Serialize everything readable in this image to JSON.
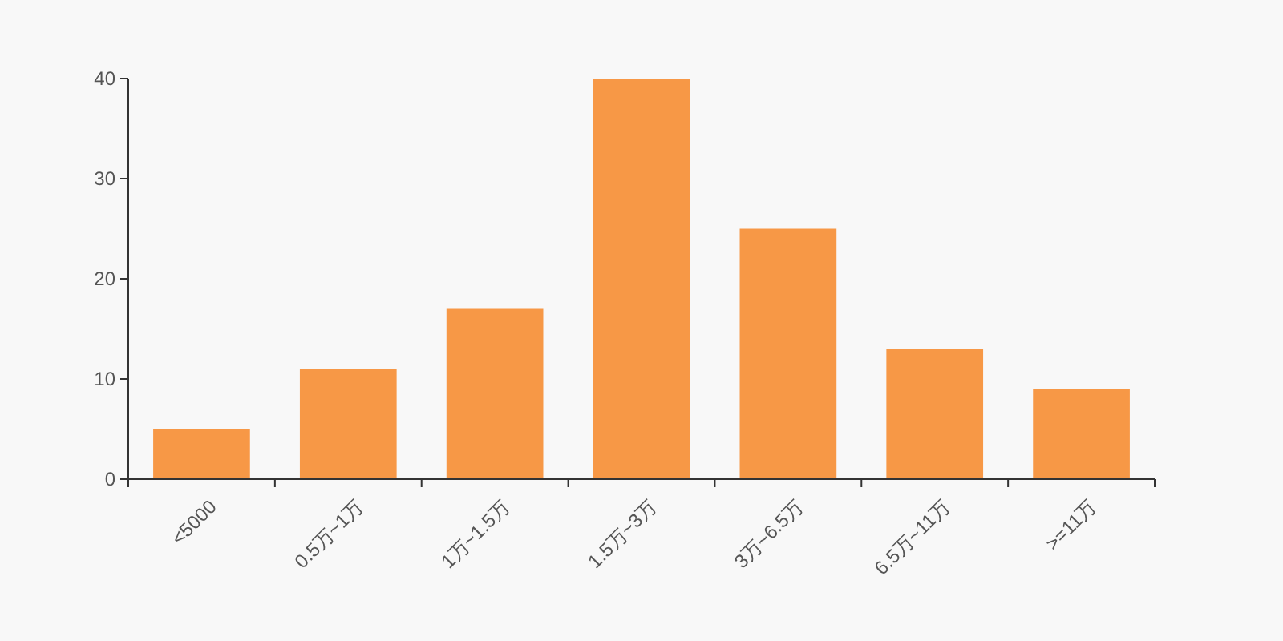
{
  "chart_data": {
    "type": "bar",
    "categories": [
      "<5000",
      "0.5万~1万",
      "1万~1.5万",
      "1.5万~3万",
      "3万~6.5万",
      "6.5万~11万",
      ">=11万"
    ],
    "values": [
      5,
      11,
      17,
      40,
      25,
      13,
      9
    ],
    "color": "#f79846",
    "ylim": [
      0,
      40
    ],
    "yticks": [
      0,
      10,
      20,
      30,
      40
    ],
    "grid": false
  }
}
